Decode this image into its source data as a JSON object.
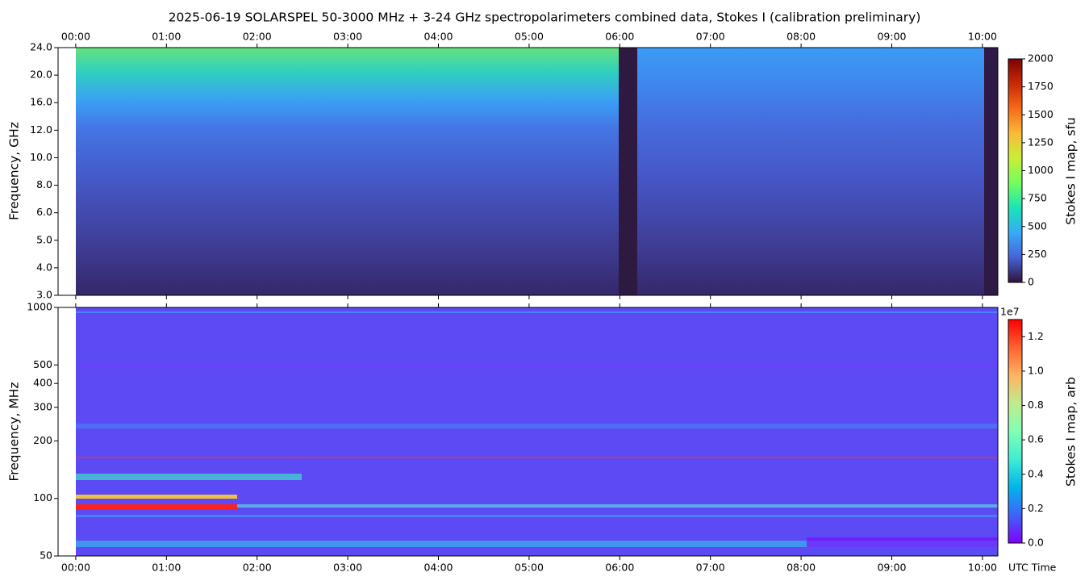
{
  "chart_data": [
    {
      "type": "heatmap",
      "title": "2025-06-19  SOLARSPEL  50-3000 MHz  +  3-24 GHz  spectropolarimeters combined data,  Stokes I  (calibration preliminary)",
      "ylabel": "Frequency, GHz",
      "xlim": [
        -0.195,
        10.17
      ],
      "xtick_side": "top",
      "xticks": [
        {
          "value": 0,
          "label": "00:00"
        },
        {
          "value": 1,
          "label": "01:00"
        },
        {
          "value": 2,
          "label": "02:00"
        },
        {
          "value": 3,
          "label": "03:00"
        },
        {
          "value": 4,
          "label": "04:00"
        },
        {
          "value": 5,
          "label": "05:00"
        },
        {
          "value": 6,
          "label": "06:00"
        },
        {
          "value": 7,
          "label": "07:00"
        },
        {
          "value": 8,
          "label": "08:00"
        },
        {
          "value": 9,
          "label": "09:00"
        },
        {
          "value": 10,
          "label": "10:00"
        }
      ],
      "ylim": [
        3,
        24
      ],
      "yscale": "channel",
      "yticks": [
        {
          "value": 3,
          "label": "3.0"
        },
        {
          "value": 4,
          "label": "4.0"
        },
        {
          "value": 5,
          "label": "5.0"
        },
        {
          "value": 6,
          "label": "6.0"
        },
        {
          "value": 8,
          "label": "8.0"
        },
        {
          "value": 10,
          "label": "10.0"
        },
        {
          "value": 12,
          "label": "12.0"
        },
        {
          "value": 16,
          "label": "16.0"
        },
        {
          "value": 20,
          "label": "20.0"
        },
        {
          "value": 24,
          "label": "24.0"
        }
      ],
      "colorbar": {
        "label": "Stokes I map, sfu",
        "lim": [
          0,
          2000
        ],
        "ticks": [
          0,
          250,
          500,
          750,
          1000,
          1250,
          1500,
          1750,
          2000
        ],
        "colors": [
          "#30123b",
          "#4662d7",
          "#36aaf9",
          "#1ae4b6",
          "#72fe5e",
          "#c8ef34",
          "#faba39",
          "#f66b19",
          "#ca2a04",
          "#7a0403"
        ]
      }
    },
    {
      "type": "heatmap",
      "ylabel": "Frequency, MHz",
      "xlabel": "UTC Time",
      "xlim": [
        -0.195,
        10.17
      ],
      "xtick_side": "bottom",
      "xticks": [
        {
          "value": 0,
          "label": "00:00"
        },
        {
          "value": 1,
          "label": "01:00"
        },
        {
          "value": 2,
          "label": "02:00"
        },
        {
          "value": 3,
          "label": "03:00"
        },
        {
          "value": 4,
          "label": "04:00"
        },
        {
          "value": 5,
          "label": "05:00"
        },
        {
          "value": 6,
          "label": "06:00"
        },
        {
          "value": 7,
          "label": "07:00"
        },
        {
          "value": 8,
          "label": "08:00"
        },
        {
          "value": 9,
          "label": "09:00"
        },
        {
          "value": 10,
          "label": "10:00"
        }
      ],
      "ylim": [
        50,
        1000
      ],
      "yscale": "log",
      "yticks": [
        50,
        100,
        200,
        300,
        400,
        500,
        1000
      ],
      "colorbar": {
        "label": "Stokes I map, arb",
        "offset_label": "1e7",
        "lim": [
          0,
          1.3
        ],
        "ticks": [
          {
            "value": 0,
            "label": "0.0"
          },
          {
            "value": 0.2,
            "label": "0.2"
          },
          {
            "value": 0.4,
            "label": "0.4"
          },
          {
            "value": 0.6,
            "label": "0.6"
          },
          {
            "value": 0.8,
            "label": "0.8"
          },
          {
            "value": 1,
            "label": "1.0"
          },
          {
            "value": 1.2,
            "label": "1.2"
          }
        ],
        "colors": [
          "#8000ff",
          "#4062fa",
          "#00b5eb",
          "#40ecd4",
          "#80ffb4",
          "#c0eb8d",
          "#ffb462",
          "#ff6232",
          "#ff0000"
        ]
      }
    }
  ]
}
